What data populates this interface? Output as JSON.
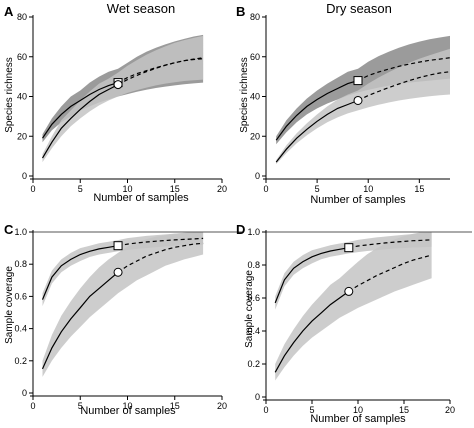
{
  "chart_data": [
    {
      "panel": "A",
      "type": "line",
      "title": "Wet season",
      "xlabel": "Number of samples",
      "ylabel": "Species richness",
      "xlim": [
        0,
        20
      ],
      "ylim": [
        0,
        80
      ],
      "xticks": [
        0,
        5,
        10,
        15,
        20
      ],
      "yticks": [
        0,
        20,
        40,
        60,
        80
      ],
      "ref_line": null,
      "series": [
        {
          "marker": "square",
          "color": "#000000",
          "band_color": "#8a8a8a",
          "observed_n": 9,
          "x": [
            1,
            2,
            3,
            4,
            5,
            6,
            7,
            8,
            9,
            10,
            11,
            12,
            13,
            14,
            15,
            16,
            17,
            18
          ],
          "y": [
            19,
            26,
            31,
            35,
            38,
            41,
            43.5,
            45.5,
            47,
            49.5,
            51.5,
            53,
            54.5,
            55.8,
            57,
            58,
            58.6,
            59
          ],
          "lower": [
            17,
            23,
            27,
            30,
            33,
            35,
            37,
            38.5,
            40,
            41.2,
            42.4,
            43.4,
            44.3,
            45,
            45.6,
            46.2,
            46.6,
            47
          ],
          "upper": [
            21,
            29,
            35,
            40,
            43,
            47,
            50,
            52.5,
            54,
            57,
            60,
            62.5,
            64.5,
            66.2,
            67.7,
            69,
            70.2,
            71
          ]
        },
        {
          "marker": "circle",
          "color": "#000000",
          "band_color": "#c4c4c4",
          "observed_n": 9,
          "x": [
            1,
            2,
            3,
            4,
            5,
            6,
            7,
            8,
            9,
            10,
            11,
            12,
            13,
            14,
            15,
            16,
            17,
            18
          ],
          "y": [
            9,
            17,
            24,
            29,
            33.5,
            37.5,
            41,
            43.5,
            46,
            48.5,
            50.6,
            52.5,
            54.2,
            55.7,
            57,
            58,
            58.8,
            59.5
          ],
          "lower": [
            7,
            14,
            20,
            25,
            29,
            32.5,
            35.5,
            38,
            40,
            41.8,
            43.2,
            44.5,
            45.6,
            46.5,
            47.2,
            47.8,
            48.2,
            48.5
          ],
          "upper": [
            11,
            20,
            28,
            33,
            38,
            42.5,
            46.5,
            49,
            52,
            55.5,
            58.3,
            61,
            63.3,
            65.2,
            67,
            68.4,
            69.5,
            70.5
          ]
        }
      ]
    },
    {
      "panel": "B",
      "type": "line",
      "title": "Dry season",
      "xlabel": "Number of samples",
      "ylabel": "Species richness",
      "xlim": [
        0,
        18
      ],
      "ylim": [
        0,
        80
      ],
      "xticks": [
        0,
        5,
        10,
        15
      ],
      "yticks": [
        0,
        20,
        40,
        60,
        80
      ],
      "ref_line": null,
      "series": [
        {
          "marker": "square",
          "color": "#000000",
          "band_color": "#8a8a8a",
          "observed_n": 9,
          "x": [
            1,
            2,
            3,
            4,
            5,
            6,
            7,
            8,
            9,
            10,
            11,
            12,
            13,
            14,
            15,
            16,
            17,
            18
          ],
          "y": [
            18,
            25,
            30.5,
            35,
            38.5,
            41.5,
            44,
            46.5,
            48,
            50.5,
            52.3,
            53.8,
            55.2,
            56.3,
            57.3,
            58.2,
            58.8,
            59.5
          ],
          "lower": [
            16,
            22,
            27,
            31,
            34,
            36.5,
            38.5,
            40.5,
            42,
            43.3,
            44.5,
            45.5,
            46.3,
            47,
            47.5,
            48,
            48.5,
            49
          ],
          "upper": [
            20,
            28,
            34,
            39,
            43,
            46.5,
            49.5,
            52.5,
            54,
            57.5,
            60.3,
            62.5,
            64.5,
            66.2,
            67.6,
            68.8,
            69.7,
            70.5
          ]
        },
        {
          "marker": "circle",
          "color": "#000000",
          "band_color": "#c4c4c4",
          "observed_n": 9,
          "x": [
            1,
            2,
            3,
            4,
            5,
            6,
            7,
            8,
            9,
            10,
            11,
            12,
            13,
            14,
            15,
            16,
            17,
            18
          ],
          "y": [
            7,
            13.5,
            19,
            23.5,
            27.5,
            31,
            34,
            36,
            38,
            40.5,
            42.5,
            44.5,
            46.3,
            48,
            49.5,
            50.8,
            51.8,
            52.5
          ],
          "lower": [
            6,
            11.5,
            16.5,
            20.5,
            24,
            27,
            29.5,
            31.5,
            33,
            34.5,
            35.8,
            37,
            38,
            38.8,
            39.5,
            40.1,
            40.6,
            41
          ],
          "upper": [
            8,
            15.5,
            21.5,
            26.5,
            31,
            35,
            38.5,
            41,
            43,
            46.5,
            49.5,
            52.2,
            54.7,
            57,
            59,
            60.8,
            62.4,
            64
          ]
        }
      ]
    },
    {
      "panel": "C",
      "type": "line",
      "title": "",
      "xlabel": "Number of samples",
      "ylabel": "Sample coverage",
      "xlim": [
        0,
        20
      ],
      "ylim": [
        0,
        1
      ],
      "xticks": [
        0,
        5,
        10,
        15,
        20
      ],
      "yticks": [
        0,
        0.2,
        0.4,
        0.6,
        0.8,
        1.0
      ],
      "ytick_labels": [
        "0",
        "0.2",
        "0.4",
        "0.6",
        "0.8",
        "1.0"
      ],
      "ref_line": 1.0,
      "series": [
        {
          "marker": "square",
          "color": "#000000",
          "band_color": "#c4c4c4",
          "observed_n": 9,
          "x": [
            1,
            2,
            3,
            4,
            5,
            6,
            7,
            8,
            9,
            10,
            11,
            12,
            13,
            14,
            15,
            16,
            17,
            18
          ],
          "y": [
            0.58,
            0.72,
            0.79,
            0.83,
            0.86,
            0.88,
            0.895,
            0.905,
            0.915,
            0.925,
            0.932,
            0.938,
            0.943,
            0.947,
            0.951,
            0.954,
            0.957,
            0.96
          ],
          "lower": [
            0.54,
            0.68,
            0.75,
            0.79,
            0.82,
            0.845,
            0.86,
            0.87,
            0.88,
            0.888,
            0.895,
            0.9,
            0.905,
            0.91,
            0.914,
            0.918,
            0.92,
            0.92
          ],
          "upper": [
            0.62,
            0.76,
            0.83,
            0.87,
            0.9,
            0.915,
            0.93,
            0.94,
            0.95,
            0.962,
            0.969,
            0.976,
            0.981,
            0.985,
            0.99,
            0.993,
            0.996,
            1.0
          ]
        },
        {
          "marker": "circle",
          "color": "#000000",
          "band_color": "#c4c4c4",
          "observed_n": 9,
          "x": [
            1,
            2,
            3,
            4,
            5,
            6,
            7,
            8,
            9,
            10,
            11,
            12,
            13,
            14,
            15,
            16,
            17,
            18
          ],
          "y": [
            0.15,
            0.28,
            0.38,
            0.46,
            0.53,
            0.6,
            0.65,
            0.7,
            0.75,
            0.79,
            0.82,
            0.85,
            0.87,
            0.89,
            0.905,
            0.915,
            0.925,
            0.93
          ],
          "lower": [
            0.1,
            0.2,
            0.28,
            0.35,
            0.41,
            0.47,
            0.52,
            0.57,
            0.62,
            0.66,
            0.7,
            0.73,
            0.76,
            0.79,
            0.81,
            0.83,
            0.845,
            0.86
          ],
          "upper": [
            0.2,
            0.36,
            0.48,
            0.57,
            0.65,
            0.72,
            0.78,
            0.83,
            0.87,
            0.91,
            0.935,
            0.955,
            0.97,
            0.98,
            0.99,
            0.995,
            1.0,
            1.0
          ]
        }
      ]
    },
    {
      "panel": "D",
      "type": "line",
      "title": "",
      "xlabel": "Number of samples",
      "ylabel": "Sample coverage",
      "xlim": [
        0,
        20
      ],
      "ylim": [
        0,
        1
      ],
      "xticks": [
        0,
        5,
        10,
        15,
        20
      ],
      "yticks": [
        0,
        0.2,
        0.4,
        0.6,
        0.8,
        1.0
      ],
      "ytick_labels": [
        "0",
        "0.2",
        "0.4",
        "0.6",
        "0.8",
        "1.0"
      ],
      "ref_line": 1.0,
      "series": [
        {
          "marker": "square",
          "color": "#000000",
          "band_color": "#c4c4c4",
          "observed_n": 9,
          "x": [
            1,
            2,
            3,
            4,
            5,
            6,
            7,
            8,
            9,
            10,
            11,
            12,
            13,
            14,
            15,
            16,
            17,
            18
          ],
          "y": [
            0.57,
            0.71,
            0.78,
            0.82,
            0.85,
            0.87,
            0.885,
            0.895,
            0.905,
            0.915,
            0.922,
            0.928,
            0.934,
            0.939,
            0.943,
            0.947,
            0.95,
            0.953
          ],
          "lower": [
            0.53,
            0.67,
            0.74,
            0.78,
            0.81,
            0.835,
            0.85,
            0.86,
            0.87,
            0.878,
            0.885,
            0.89,
            0.895,
            0.9,
            0.903,
            0.906,
            0.908,
            0.91
          ],
          "upper": [
            0.61,
            0.75,
            0.82,
            0.86,
            0.89,
            0.905,
            0.92,
            0.93,
            0.94,
            0.952,
            0.96,
            0.967,
            0.973,
            0.978,
            0.983,
            0.988,
            0.993,
            0.997
          ]
        },
        {
          "marker": "circle",
          "color": "#000000",
          "band_color": "#c4c4c4",
          "observed_n": 9,
          "x": [
            1,
            2,
            3,
            4,
            5,
            6,
            7,
            8,
            9,
            10,
            11,
            12,
            13,
            14,
            15,
            16,
            17,
            18
          ],
          "y": [
            0.15,
            0.25,
            0.33,
            0.4,
            0.46,
            0.51,
            0.56,
            0.6,
            0.64,
            0.675,
            0.705,
            0.735,
            0.76,
            0.785,
            0.81,
            0.83,
            0.845,
            0.86
          ],
          "lower": [
            0.1,
            0.18,
            0.25,
            0.31,
            0.36,
            0.4,
            0.44,
            0.48,
            0.51,
            0.54,
            0.565,
            0.59,
            0.615,
            0.64,
            0.66,
            0.68,
            0.7,
            0.72
          ],
          "upper": [
            0.2,
            0.32,
            0.41,
            0.49,
            0.56,
            0.62,
            0.68,
            0.72,
            0.77,
            0.82,
            0.865,
            0.9,
            0.93,
            0.955,
            0.975,
            0.99,
            1.0,
            1.0
          ]
        }
      ]
    }
  ]
}
